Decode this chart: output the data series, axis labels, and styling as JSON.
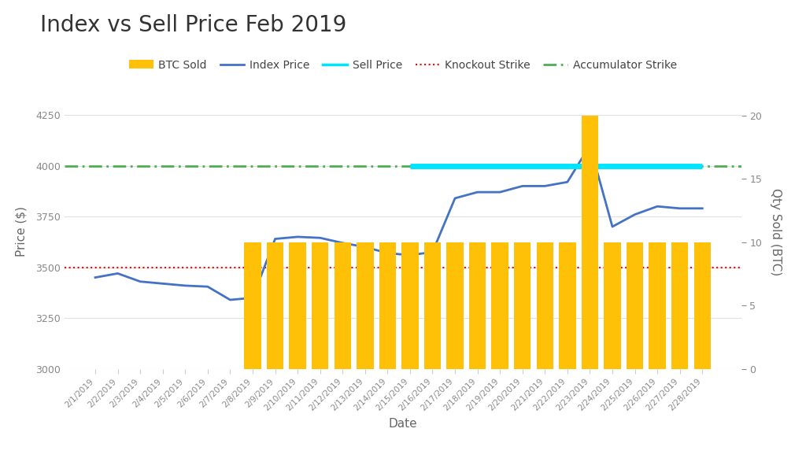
{
  "title": "Index vs Sell Price Feb 2019",
  "xlabel": "Date",
  "ylabel_left": "Price ($)",
  "ylabel_right": "Qty Sold (BTC)",
  "dates": [
    "2/1/2019",
    "2/2/2019",
    "2/3/2019",
    "2/4/2019",
    "2/5/2019",
    "2/6/2019",
    "2/7/2019",
    "2/8/2019",
    "2/9/2019",
    "2/10/2019",
    "2/11/2019",
    "2/12/2019",
    "2/13/2019",
    "2/14/2019",
    "2/15/2019",
    "2/16/2019",
    "2/17/2019",
    "2/18/2019",
    "2/19/2019",
    "2/20/2019",
    "2/21/2019",
    "2/22/2019",
    "2/23/2019",
    "2/24/2019",
    "2/25/2019",
    "2/26/2019",
    "2/27/2019",
    "2/28/2019"
  ],
  "index_price": [
    3450,
    3470,
    3430,
    3420,
    3410,
    3405,
    3340,
    3350,
    3640,
    3650,
    3645,
    3620,
    3600,
    3570,
    3560,
    3575,
    3840,
    3870,
    3870,
    3900,
    3900,
    3920,
    4100,
    3700,
    3760,
    3800,
    3790,
    3790
  ],
  "sell_price": [
    null,
    null,
    null,
    null,
    null,
    null,
    null,
    null,
    null,
    null,
    null,
    null,
    null,
    null,
    4000,
    4000,
    4000,
    4000,
    4000,
    4000,
    4000,
    4000,
    4000,
    4000,
    4000,
    4000,
    4000,
    4000
  ],
  "knockout_strike": 3500,
  "accumulator_strike": 4000,
  "btc_sold": [
    0,
    0,
    0,
    0,
    0,
    0,
    0,
    10,
    10,
    10,
    10,
    10,
    10,
    10,
    10,
    10,
    10,
    10,
    10,
    10,
    10,
    10,
    20,
    10,
    10,
    10,
    10,
    10
  ],
  "bar_color": "#FFC107",
  "index_color": "#4472C4",
  "sell_color": "#00E5FF",
  "knockout_color": "#FF0000",
  "accumulator_color": "#4CAF50",
  "background_color": "#FFFFFF",
  "grid_color": "#E0E0E0",
  "ylim_left": [
    3000,
    4350
  ],
  "ylim_right": [
    0,
    21.667
  ],
  "title_fontsize": 20,
  "label_fontsize": 11,
  "tick_fontsize": 9,
  "legend_fontsize": 10
}
